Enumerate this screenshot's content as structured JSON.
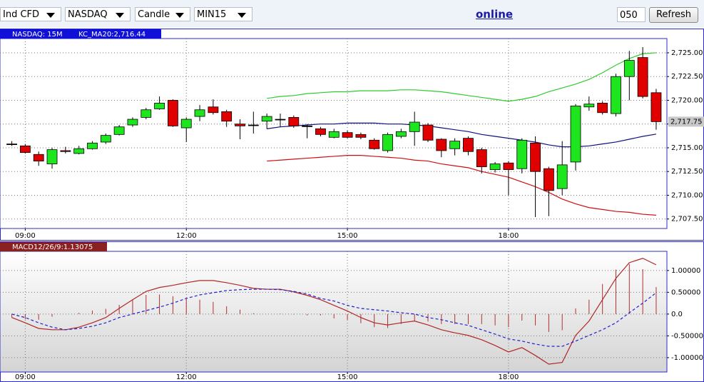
{
  "toolbar": {
    "selects": [
      "Ind CFD",
      "NASDAQ",
      "Candle",
      "MIN15"
    ],
    "status": "online",
    "input": "050",
    "button": "Refresh"
  },
  "chart_data": [
    {
      "type": "candlestick",
      "title": "NASDAQ: 15M",
      "indicator_label": "KC_MA20:2,716.44",
      "x": [
        8.75,
        9,
        9.25,
        9.5,
        9.75,
        10,
        10.25,
        10.5,
        10.75,
        11,
        11.25,
        11.5,
        11.75,
        12,
        12.25,
        12.5,
        12.75,
        13,
        13.25,
        13.5,
        13.75,
        14,
        14.25,
        14.5,
        14.75,
        15,
        15.25,
        15.5,
        15.75,
        16,
        16.25,
        16.5,
        16.75,
        17,
        17.25,
        17.5,
        17.75,
        18,
        18.25,
        18.5,
        18.75,
        19,
        19.25,
        19.5,
        19.75,
        20,
        20.25,
        20.5,
        20.75
      ],
      "open": [
        2715.4,
        2715.2,
        2714.3,
        2713.3,
        2714.7,
        2714.4,
        2714.9,
        2715.6,
        2716.4,
        2717.4,
        2718.2,
        2719.1,
        2720.0,
        2717.1,
        2718.3,
        2719.3,
        2718.8,
        2717.5,
        2717.4,
        2717.8,
        2718.0,
        2718.2,
        2717.3,
        2717.0,
        2716.1,
        2716.6,
        2716.4,
        2715.8,
        2714.7,
        2716.2,
        2716.7,
        2717.4,
        2715.9,
        2714.9,
        2716.0,
        2714.8,
        2712.7,
        2713.4,
        2712.8,
        2715.5,
        2712.8,
        2710.7,
        2713.5,
        2719.3,
        2719.7,
        2718.6,
        2722.5,
        2724.5,
        2720.8
      ],
      "high": [
        2715.7,
        2715.4,
        2714.6,
        2715.0,
        2715.1,
        2715.2,
        2715.7,
        2716.5,
        2717.4,
        2718.2,
        2719.2,
        2720.4,
        2720.1,
        2718.2,
        2719.5,
        2720.1,
        2719.0,
        2718.0,
        2718.8,
        2718.6,
        2718.6,
        2718.4,
        2717.5,
        2717.2,
        2717.0,
        2716.8,
        2716.6,
        2716.0,
        2716.6,
        2717.0,
        2718.8,
        2717.6,
        2716.0,
        2716.0,
        2716.2,
        2715.0,
        2713.5,
        2713.6,
        2716.0,
        2716.2,
        2713.0,
        2715.7,
        2719.6,
        2720.4,
        2719.9,
        2722.8,
        2725.2,
        2725.6,
        2721.2
      ],
      "low": [
        2715.2,
        2714.4,
        2713.1,
        2712.8,
        2714.4,
        2714.3,
        2714.8,
        2715.4,
        2716.3,
        2717.2,
        2718.0,
        2719.0,
        2717.2,
        2715.6,
        2717.8,
        2718.5,
        2717.2,
        2715.9,
        2716.5,
        2717.0,
        2717.2,
        2717.1,
        2716.0,
        2716.2,
        2716.0,
        2716.0,
        2715.9,
        2714.8,
        2714.5,
        2716.0,
        2715.2,
        2715.6,
        2714.0,
        2714.2,
        2714.2,
        2712.3,
        2712.4,
        2710.0,
        2712.3,
        2707.7,
        2707.8,
        2710.0,
        2712.6,
        2718.9,
        2718.5,
        2718.3,
        2720.0,
        2720.2,
        2716.9
      ],
      "close": [
        2715.4,
        2714.5,
        2713.6,
        2714.8,
        2714.6,
        2714.9,
        2715.5,
        2716.3,
        2717.2,
        2718.0,
        2719.0,
        2719.7,
        2717.3,
        2718.0,
        2719.0,
        2718.7,
        2717.8,
        2717.3,
        2717.4,
        2718.3,
        2718.0,
        2717.3,
        2717.3,
        2716.4,
        2716.7,
        2716.1,
        2716.1,
        2714.9,
        2716.4,
        2716.7,
        2717.7,
        2715.8,
        2714.7,
        2715.7,
        2714.6,
        2713.0,
        2713.3,
        2712.7,
        2715.8,
        2712.5,
        2710.5,
        2713.2,
        2719.4,
        2719.6,
        2718.7,
        2722.5,
        2724.2,
        2720.4,
        2717.75
      ],
      "up_color": "#1ee61e",
      "down_color": "#e00000",
      "lines": [
        {
          "color": "#2ecc2e",
          "values": [
            null,
            null,
            null,
            null,
            null,
            null,
            null,
            null,
            null,
            null,
            null,
            null,
            null,
            null,
            null,
            null,
            null,
            null,
            null,
            2720.2,
            2720.4,
            2720.5,
            2720.7,
            2720.8,
            2720.9,
            2720.9,
            2721.0,
            2721.0,
            2721.0,
            2721.1,
            2721.1,
            2721.0,
            2720.9,
            2720.7,
            2720.5,
            2720.3,
            2720.1,
            2719.9,
            2720.1,
            2720.4,
            2720.9,
            2721.3,
            2721.7,
            2722.2,
            2722.9,
            2723.7,
            2724.4,
            2724.9,
            2725.0
          ]
        },
        {
          "color": "#101080",
          "values": [
            null,
            null,
            null,
            null,
            null,
            null,
            null,
            null,
            null,
            null,
            null,
            null,
            null,
            null,
            null,
            null,
            null,
            null,
            null,
            2717.0,
            2717.2,
            2717.3,
            2717.4,
            2717.5,
            2717.5,
            2717.6,
            2717.6,
            2717.6,
            2717.5,
            2717.5,
            2717.4,
            2717.3,
            2717.1,
            2716.9,
            2716.7,
            2716.4,
            2716.2,
            2716.0,
            2715.8,
            2715.6,
            2715.3,
            2715.1,
            2715.1,
            2715.2,
            2715.4,
            2715.6,
            2715.9,
            2716.2,
            2716.44
          ]
        },
        {
          "color": "#cc1010",
          "values": [
            null,
            null,
            null,
            null,
            null,
            null,
            null,
            null,
            null,
            null,
            null,
            null,
            null,
            null,
            null,
            null,
            null,
            null,
            null,
            2713.6,
            2713.7,
            2713.8,
            2713.9,
            2714.0,
            2714.1,
            2714.2,
            2714.2,
            2714.1,
            2714.0,
            2713.9,
            2713.7,
            2713.6,
            2713.3,
            2713.1,
            2712.9,
            2712.5,
            2712.2,
            2711.9,
            2711.4,
            2710.9,
            2710.3,
            2709.6,
            2709.1,
            2708.7,
            2708.5,
            2708.3,
            2708.2,
            2708.0,
            2707.9
          ]
        }
      ],
      "last_price": {
        "value": 2717.75,
        "label": "2,717.75"
      },
      "xlim": [
        8.53,
        20.95
      ],
      "xticks": [
        {
          "value": 9,
          "label": "09:00"
        },
        {
          "value": 12,
          "label": "12:00"
        },
        {
          "value": 15,
          "label": "15:00"
        },
        {
          "value": 18,
          "label": "18:00"
        }
      ],
      "ylim": [
        2706.5,
        2726.5
      ],
      "yticks": [
        {
          "value": 2707.5,
          "label": "2,707.50"
        },
        {
          "value": 2710,
          "label": "2,710.00"
        },
        {
          "value": 2712.5,
          "label": "2,712.50"
        },
        {
          "value": 2715,
          "label": "2,715.00"
        },
        {
          "value": 2717.5,
          "label": "2,717.50"
        },
        {
          "value": 2720,
          "label": "2,720.00"
        },
        {
          "value": 2722.5,
          "label": "2,722.50"
        },
        {
          "value": 2725,
          "label": "2,725.00"
        }
      ],
      "grid": true
    },
    {
      "type": "macd",
      "title": "MACD12/26/9:1.13075",
      "x": [
        8.75,
        9,
        9.25,
        9.5,
        9.75,
        10,
        10.25,
        10.5,
        10.75,
        11,
        11.25,
        11.5,
        11.75,
        12,
        12.25,
        12.5,
        12.75,
        13,
        13.25,
        13.5,
        13.75,
        14,
        14.25,
        14.5,
        14.75,
        15,
        15.25,
        15.5,
        15.75,
        16,
        16.25,
        16.5,
        16.75,
        17,
        17.25,
        17.5,
        17.75,
        18,
        18.25,
        18.5,
        18.75,
        19,
        19.25,
        19.5,
        19.75,
        20,
        20.25,
        20.5,
        20.75
      ],
      "macd": {
        "color": "#b02828",
        "values": [
          -0.08,
          -0.2,
          -0.33,
          -0.36,
          -0.36,
          -0.3,
          -0.2,
          -0.08,
          0.13,
          0.33,
          0.52,
          0.61,
          0.66,
          0.72,
          0.77,
          0.77,
          0.72,
          0.66,
          0.59,
          0.57,
          0.57,
          0.51,
          0.43,
          0.33,
          0.2,
          0.07,
          -0.08,
          -0.2,
          -0.25,
          -0.2,
          -0.16,
          -0.25,
          -0.36,
          -0.43,
          -0.49,
          -0.59,
          -0.72,
          -0.87,
          -0.77,
          -0.95,
          -1.15,
          -1.11,
          -0.49,
          -0.16,
          0.33,
          0.82,
          1.18,
          1.28,
          1.13075
        ]
      },
      "signal": {
        "color": "#2020d0",
        "values": [
          0,
          -0.08,
          -0.2,
          -0.3,
          -0.36,
          -0.33,
          -0.28,
          -0.2,
          -0.08,
          0,
          0.08,
          0.16,
          0.25,
          0.36,
          0.44,
          0.49,
          0.54,
          0.56,
          0.57,
          0.57,
          0.56,
          0.52,
          0.46,
          0.36,
          0.3,
          0.2,
          0.13,
          0.1,
          0.07,
          0.03,
          0,
          -0.08,
          -0.13,
          -0.2,
          -0.26,
          -0.36,
          -0.46,
          -0.57,
          -0.62,
          -0.69,
          -0.74,
          -0.74,
          -0.62,
          -0.49,
          -0.36,
          -0.2,
          0.03,
          0.25,
          0.49
        ]
      },
      "histogram": {
        "color": "#b03030",
        "values": [
          -0.08,
          -0.12,
          -0.13,
          -0.06,
          0,
          0.03,
          0.08,
          0.12,
          0.21,
          0.33,
          0.44,
          0.45,
          0.41,
          0.36,
          0.33,
          0.28,
          0.18,
          0.1,
          0.02,
          0,
          0.01,
          -0.01,
          -0.03,
          -0.03,
          -0.1,
          -0.13,
          -0.21,
          -0.3,
          -0.32,
          -0.23,
          -0.16,
          -0.17,
          -0.23,
          -0.23,
          -0.23,
          -0.23,
          -0.26,
          -0.3,
          -0.15,
          -0.26,
          -0.41,
          -0.37,
          0.13,
          0.33,
          0.69,
          1.02,
          1.15,
          1.03,
          0.62
        ]
      },
      "xlim": [
        8.53,
        20.95
      ],
      "xticks": [
        {
          "value": 9,
          "label": "09:00"
        },
        {
          "value": 12,
          "label": "12:00"
        },
        {
          "value": 15,
          "label": "15:00"
        },
        {
          "value": 18,
          "label": "18:00"
        }
      ],
      "ylim": [
        -1.33,
        1.44
      ],
      "yticks": [
        {
          "value": 1,
          "label": "1.00000"
        },
        {
          "value": 0.5,
          "label": "0.50000"
        },
        {
          "value": 0,
          "label": "0.0"
        },
        {
          "value": -0.5,
          "label": "-0.50000"
        },
        {
          "value": -1,
          "label": "-1.00000"
        }
      ],
      "grid": true
    }
  ]
}
